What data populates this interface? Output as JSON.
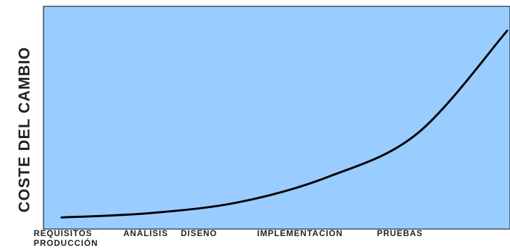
{
  "chart_data": {
    "type": "line",
    "title": "",
    "xlabel": "",
    "ylabel": "COSTE DEL CAMBIO",
    "categories": [
      "REQUISITOS",
      "ANÁLISIS",
      "DISEÑO",
      "IMPLEMENTACIÓN",
      "PRUEBAS",
      "PRODUCCIÓN"
    ],
    "series": [
      {
        "values": [
          0.2,
          1.0,
          3.0,
          7.6,
          15.5,
          34.0
        ]
      }
    ],
    "ylim": [
      0,
      36
    ],
    "grid": false,
    "legend": "none",
    "colors": {
      "plot_background": "#99ccff",
      "line": "#000000",
      "axis": "#000000"
    }
  }
}
